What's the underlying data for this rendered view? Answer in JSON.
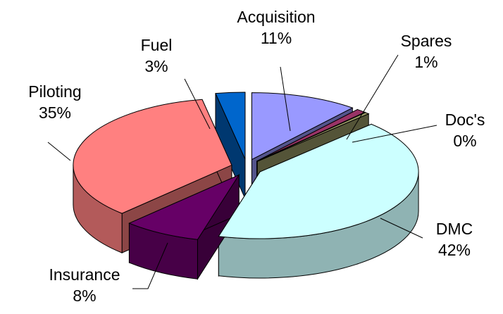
{
  "chart_data": {
    "type": "pie",
    "style": "3d-exploded",
    "legend": "none",
    "slices": [
      {
        "label": "Acquisition",
        "value": 11,
        "value_label": "11%",
        "color": "#9999ff"
      },
      {
        "label": "Spares",
        "value": 1,
        "value_label": "1%",
        "color": "#993366"
      },
      {
        "label": "Doc's",
        "value": 0,
        "value_label": "0%",
        "color": "#999966"
      },
      {
        "label": "DMC",
        "value": 42,
        "value_label": "42%",
        "color": "#ccffff"
      },
      {
        "label": "Insurance",
        "value": 8,
        "value_label": "8%",
        "color": "#660066"
      },
      {
        "label": "Piloting",
        "value": 35,
        "value_label": "35%",
        "color": "#ff8080"
      },
      {
        "label": "Fuel",
        "value": 3,
        "value_label": "3%",
        "color": "#0066cc"
      }
    ]
  }
}
